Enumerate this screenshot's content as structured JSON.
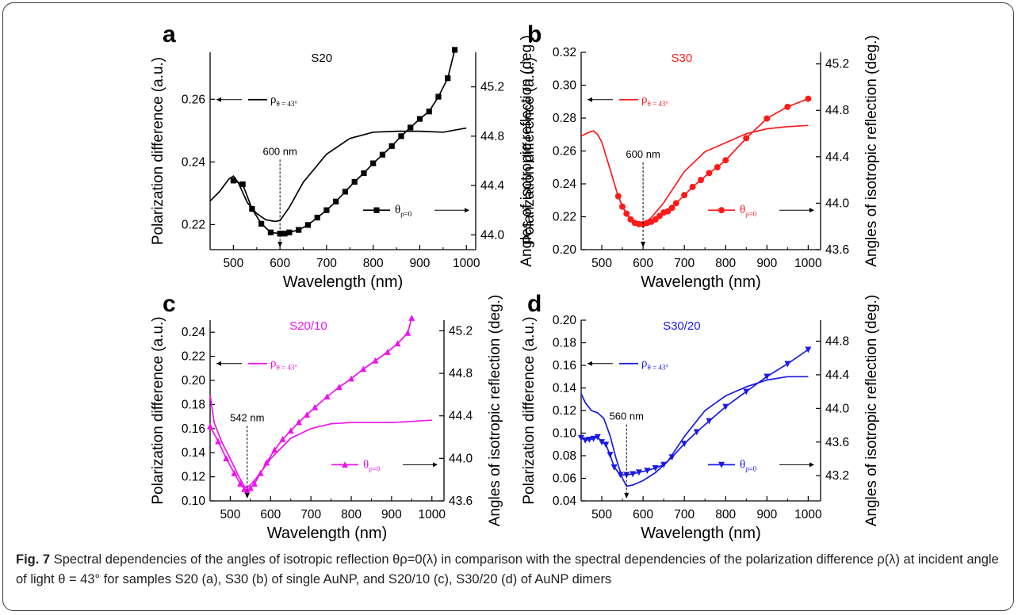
{
  "figure": {
    "caption_label": "Fig. 7",
    "caption_text": "Spectral dependencies of the angles of isotropic reflection θρ=0(λ) in comparison with the spectral dependencies of the polarization difference ρ(λ) at incident angle of light θ = 43° for samples S20 (a), S30 (b) of single AuNP, and S20/10 (c), S30/20 (d) of AuNP dimers"
  },
  "chart_data": [
    {
      "type": "line",
      "panel_label": "a",
      "title": "S20",
      "color": "#000000",
      "marker": "square",
      "xlabel": "Wavelength (nm)",
      "ylabel": "Polarization difference (a.u.)",
      "y2label": "Angles of isotropic reflection (deg.)",
      "xlim": [
        450,
        1020
      ],
      "ylim": [
        0.212,
        0.275
      ],
      "y2lim": [
        43.88,
        45.48
      ],
      "xticks": [
        500,
        600,
        700,
        800,
        900,
        1000
      ],
      "yticks": [
        0.22,
        0.24,
        0.26
      ],
      "y2ticks": [
        44.0,
        44.4,
        44.8,
        45.2
      ],
      "annotation": "600 nm",
      "annotation_x": 600,
      "legend_rho": "ρθ = 43°",
      "legend_theta": "θρ=0",
      "series": [
        {
          "name": "ρθ = 43°",
          "axis": "left",
          "x": [
            450,
            470,
            490,
            500,
            510,
            530,
            550,
            570,
            590,
            600,
            620,
            650,
            700,
            750,
            800,
            850,
            900,
            950,
            1000
          ],
          "y": [
            0.2275,
            0.2305,
            0.2345,
            0.2355,
            0.2335,
            0.227,
            0.2235,
            0.2215,
            0.221,
            0.2213,
            0.2255,
            0.2335,
            0.2425,
            0.2475,
            0.2495,
            0.2498,
            0.2498,
            0.2495,
            0.2508
          ]
        },
        {
          "name": "θρ=0",
          "axis": "right",
          "x": [
            500,
            520,
            540,
            560,
            580,
            600,
            610,
            620,
            640,
            660,
            680,
            700,
            720,
            740,
            760,
            780,
            800,
            820,
            840,
            860,
            880,
            900,
            920,
            940,
            960,
            975
          ],
          "y": [
            44.44,
            44.41,
            44.21,
            44.09,
            44.02,
            44.01,
            44.01,
            44.02,
            44.04,
            44.08,
            44.14,
            44.2,
            44.27,
            44.35,
            44.43,
            44.5,
            44.58,
            44.65,
            44.72,
            44.8,
            44.87,
            44.94,
            45.0,
            45.12,
            45.27,
            45.5
          ]
        }
      ]
    },
    {
      "type": "line",
      "panel_label": "b",
      "title": "S30",
      "color": "#ff1a1a",
      "marker": "circle",
      "xlabel": "Wavelength (nm)",
      "ylabel": "Polarization difference (a.u.)",
      "y2label": "Angles of isotropic reflection (deg.)",
      "xlim": [
        450,
        1030
      ],
      "ylim": [
        0.2,
        0.32
      ],
      "y2lim": [
        43.6,
        45.3
      ],
      "xticks": [
        500,
        600,
        700,
        800,
        900,
        1000
      ],
      "yticks": [
        0.2,
        0.22,
        0.24,
        0.26,
        0.28,
        0.3,
        0.32
      ],
      "y2ticks": [
        43.6,
        44.0,
        44.4,
        44.8,
        45.2
      ],
      "annotation": "600 nm",
      "annotation_x": 600,
      "legend_rho": "ρθ = 43°",
      "legend_theta": "θρ=0",
      "series": [
        {
          "name": "ρθ = 43°",
          "axis": "left",
          "x": [
            450,
            470,
            480,
            490,
            500,
            520,
            540,
            560,
            580,
            600,
            620,
            650,
            700,
            750,
            800,
            850,
            900,
            950,
            1000
          ],
          "y": [
            0.269,
            0.2715,
            0.2722,
            0.27,
            0.2655,
            0.249,
            0.232,
            0.2215,
            0.2165,
            0.2155,
            0.2195,
            0.2285,
            0.2475,
            0.2595,
            0.265,
            0.2705,
            0.2735,
            0.2748,
            0.2755
          ]
        },
        {
          "name": "θρ=0",
          "axis": "right",
          "x": [
            540,
            550,
            560,
            570,
            580,
            590,
            600,
            610,
            620,
            630,
            640,
            650,
            660,
            670,
            680,
            700,
            720,
            740,
            760,
            780,
            800,
            850,
            900,
            950,
            1000
          ],
          "y": [
            44.06,
            43.97,
            43.91,
            43.86,
            43.83,
            43.82,
            43.82,
            43.83,
            43.84,
            43.86,
            43.89,
            43.92,
            43.93,
            43.96,
            44.0,
            44.07,
            44.14,
            44.2,
            44.26,
            44.31,
            44.37,
            44.56,
            44.73,
            44.83,
            44.9
          ]
        }
      ]
    },
    {
      "type": "line",
      "panel_label": "c",
      "title": "S20/10",
      "color": "#ee11ee",
      "marker": "triangle-up",
      "xlabel": "Wavelength (nm)",
      "ylabel": "Polarization difference (a.u.)",
      "y2label": "Angles of isotropic reflection (deg.)",
      "xlim": [
        450,
        1030
      ],
      "ylim": [
        0.1,
        0.25
      ],
      "y2lim": [
        43.6,
        45.3
      ],
      "xticks": [
        500,
        600,
        700,
        800,
        900,
        1000
      ],
      "yticks": [
        0.1,
        0.12,
        0.14,
        0.16,
        0.18,
        0.2,
        0.22,
        0.24
      ],
      "y2ticks": [
        43.6,
        44.0,
        44.4,
        44.8,
        45.2
      ],
      "annotation": "542 nm",
      "annotation_x": 542,
      "legend_rho": "ρθ = 43°",
      "legend_theta": "θρ=0",
      "series": [
        {
          "name": "ρθ = 43°",
          "axis": "left",
          "x": [
            450,
            460,
            480,
            500,
            520,
            535,
            542,
            555,
            570,
            600,
            650,
            700,
            750,
            800,
            850,
            900,
            950,
            1000
          ],
          "y": [
            0.188,
            0.165,
            0.148,
            0.135,
            0.121,
            0.112,
            0.111,
            0.115,
            0.121,
            0.135,
            0.152,
            0.16,
            0.164,
            0.165,
            0.165,
            0.165,
            0.166,
            0.167
          ]
        },
        {
          "name": "θρ=0",
          "axis": "right",
          "x": [
            450,
            470,
            490,
            510,
            525,
            535,
            542,
            550,
            560,
            575,
            590,
            610,
            630,
            650,
            670,
            690,
            710,
            740,
            770,
            800,
            830,
            860,
            890,
            915,
            940,
            950
          ],
          "y": [
            44.3,
            44.16,
            44.0,
            43.86,
            43.76,
            43.71,
            43.7,
            43.72,
            43.76,
            43.86,
            43.96,
            44.08,
            44.18,
            44.26,
            44.34,
            44.41,
            44.48,
            44.58,
            44.67,
            44.75,
            44.84,
            44.92,
            45.0,
            45.08,
            45.18,
            45.32
          ]
        }
      ]
    },
    {
      "type": "line",
      "panel_label": "d",
      "title": "S30/20",
      "color": "#1a1ae6",
      "marker": "triangle-down",
      "xlabel": "Wavelength (nm)",
      "ylabel": "Polarization difference (a.u.)",
      "y2label": "Angles of isotropic reflection (deg.)",
      "xlim": [
        450,
        1030
      ],
      "ylim": [
        0.04,
        0.2
      ],
      "y2lim": [
        42.9,
        45.05
      ],
      "xticks": [
        500,
        600,
        700,
        800,
        900,
        1000
      ],
      "yticks": [
        0.04,
        0.06,
        0.08,
        0.1,
        0.12,
        0.14,
        0.16,
        0.18,
        0.2
      ],
      "y2ticks": [
        43.2,
        43.6,
        44.0,
        44.4,
        44.8
      ],
      "annotation": "560 nm",
      "annotation_x": 560,
      "legend_rho": "ρθ = 43°",
      "legend_theta": "θρ=0",
      "series": [
        {
          "name": "ρθ = 43°",
          "axis": "left",
          "x": [
            450,
            460,
            475,
            490,
            505,
            520,
            535,
            550,
            560,
            575,
            600,
            630,
            660,
            700,
            750,
            800,
            850,
            900,
            950,
            1000
          ],
          "y": [
            0.135,
            0.127,
            0.12,
            0.118,
            0.113,
            0.098,
            0.077,
            0.06,
            0.053,
            0.054,
            0.058,
            0.065,
            0.075,
            0.097,
            0.12,
            0.133,
            0.141,
            0.147,
            0.15,
            0.15
          ]
        },
        {
          "name": "θρ=0",
          "axis": "right",
          "x": [
            450,
            460,
            470,
            480,
            490,
            500,
            510,
            520,
            530,
            545,
            560,
            575,
            590,
            610,
            630,
            650,
            670,
            700,
            730,
            760,
            800,
            850,
            900,
            950,
            1000
          ],
          "y": [
            43.65,
            43.62,
            43.63,
            43.64,
            43.66,
            43.6,
            43.57,
            43.45,
            43.3,
            43.21,
            43.21,
            43.22,
            43.24,
            43.26,
            43.29,
            43.33,
            43.42,
            43.58,
            43.72,
            43.85,
            44.02,
            44.2,
            44.38,
            44.53,
            44.7
          ]
        }
      ]
    }
  ]
}
